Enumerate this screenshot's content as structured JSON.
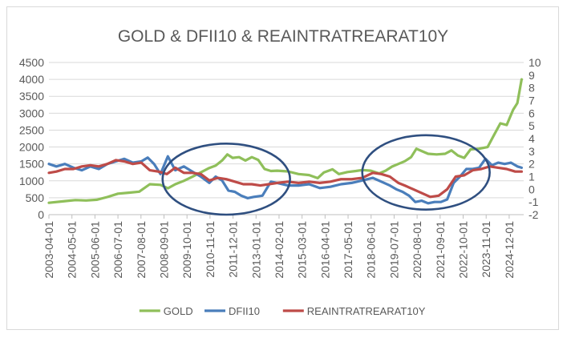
{
  "chart_data": {
    "type": "line",
    "title": "GOLD & DFII10 & REAINTRATREARAT10Y",
    "xlabel": "",
    "ylabel_left": "",
    "ylabel_right": "",
    "ylim_left": [
      0,
      4500
    ],
    "ylim_right": [
      -2,
      10
    ],
    "yticks_left": [
      "0",
      "500",
      "1000",
      "1500",
      "2000",
      "2500",
      "3000",
      "3500",
      "4000",
      "4500"
    ],
    "yticks_right": [
      "-2",
      "-1",
      "0",
      "1",
      "2",
      "3",
      "4",
      "5",
      "6",
      "7",
      "8",
      "9",
      "10"
    ],
    "x_categories": [
      "2003-04-01",
      "2004-05-01",
      "2005-06-01",
      "2006-07-01",
      "2007-08-01",
      "2008-09-01",
      "2009-10-01",
      "2010-11-01",
      "2011-12-01",
      "2013-01-01",
      "2014-02-01",
      "2015-03-01",
      "2016-04-01",
      "2017-05-01",
      "2018-06-01",
      "2019-07-01",
      "2020-08-01",
      "2021-09-01",
      "2022-10-01",
      "2023-11-01",
      "2024-12-01"
    ],
    "legend_position": "bottom",
    "series": [
      {
        "name": "GOLD",
        "axis": "left",
        "color": "#8fbf5a",
        "x": [
          2003.25,
          2004.0,
          2004.5,
          2005.0,
          2005.5,
          2006.0,
          2006.5,
          2007.0,
          2007.5,
          2008.0,
          2008.5,
          2008.85,
          2009.2,
          2009.6,
          2010.0,
          2010.4,
          2010.8,
          2011.1,
          2011.4,
          2011.65,
          2011.9,
          2012.2,
          2012.5,
          2012.8,
          2013.1,
          2013.4,
          2013.7,
          2014.0,
          2014.5,
          2015.0,
          2015.5,
          2015.9,
          2016.2,
          2016.6,
          2016.9,
          2017.3,
          2017.7,
          2018.0,
          2018.4,
          2018.8,
          2019.1,
          2019.4,
          2019.7,
          2020.0,
          2020.3,
          2020.55,
          2020.8,
          2021.1,
          2021.5,
          2021.9,
          2022.2,
          2022.5,
          2022.8,
          2023.1,
          2023.5,
          2023.9,
          2024.2,
          2024.5,
          2024.8,
          2025.1,
          2025.3,
          2025.5
        ],
        "values": [
          350,
          400,
          430,
          420,
          440,
          520,
          620,
          650,
          680,
          900,
          880,
          780,
          900,
          1000,
          1120,
          1250,
          1380,
          1450,
          1600,
          1780,
          1680,
          1700,
          1600,
          1700,
          1620,
          1350,
          1290,
          1300,
          1280,
          1200,
          1170,
          1080,
          1250,
          1340,
          1200,
          1260,
          1290,
          1320,
          1300,
          1220,
          1300,
          1420,
          1500,
          1580,
          1700,
          1950,
          1880,
          1800,
          1780,
          1800,
          1900,
          1750,
          1680,
          1930,
          1950,
          2000,
          2350,
          2700,
          2650,
          3100,
          3300,
          4000
        ]
      },
      {
        "name": "DFII10",
        "axis": "right",
        "color": "#4a7ebb",
        "x": [
          2003.25,
          2003.6,
          2004.0,
          2004.4,
          2004.8,
          2005.2,
          2005.6,
          2006.0,
          2006.4,
          2006.8,
          2007.2,
          2007.6,
          2007.9,
          2008.2,
          2008.5,
          2008.85,
          2009.2,
          2009.6,
          2010.0,
          2010.4,
          2010.8,
          2011.1,
          2011.4,
          2011.7,
          2012.0,
          2012.3,
          2012.6,
          2012.9,
          2013.3,
          2013.7,
          2014.0,
          2014.5,
          2015.0,
          2015.5,
          2016.0,
          2016.5,
          2017.0,
          2017.5,
          2018.0,
          2018.5,
          2018.9,
          2019.3,
          2019.6,
          2019.9,
          2020.2,
          2020.5,
          2020.8,
          2021.1,
          2021.4,
          2021.7,
          2022.0,
          2022.3,
          2022.6,
          2022.9,
          2023.2,
          2023.5,
          2023.8,
          2024.1,
          2024.4,
          2024.7,
          2025.0,
          2025.3,
          2025.5
        ],
        "values": [
          2.0,
          1.8,
          2.0,
          1.7,
          1.5,
          1.8,
          1.6,
          2.0,
          2.2,
          2.4,
          2.1,
          2.2,
          2.5,
          2.0,
          1.2,
          2.6,
          1.5,
          1.8,
          1.4,
          1.0,
          0.5,
          1.0,
          0.7,
          -0.1,
          -0.2,
          -0.5,
          -0.7,
          -0.6,
          -0.5,
          0.6,
          0.5,
          0.3,
          0.3,
          0.4,
          0.1,
          0.2,
          0.4,
          0.5,
          0.7,
          0.9,
          0.6,
          0.3,
          0.0,
          -0.2,
          -0.5,
          -1.0,
          -0.9,
          -1.1,
          -1.0,
          -1.0,
          -0.8,
          0.5,
          1.0,
          1.6,
          1.6,
          1.7,
          2.4,
          1.9,
          2.1,
          2.0,
          2.1,
          1.8,
          1.7
        ]
      },
      {
        "name": "REAINTRATREARAT10Y",
        "axis": "right",
        "color": "#be4b48",
        "x": [
          2003.25,
          2003.6,
          2004.0,
          2004.4,
          2004.8,
          2005.2,
          2005.6,
          2006.0,
          2006.4,
          2006.8,
          2007.2,
          2007.6,
          2008.0,
          2008.4,
          2008.8,
          2009.2,
          2009.6,
          2010.0,
          2010.4,
          2010.8,
          2011.2,
          2011.6,
          2012.0,
          2012.4,
          2012.8,
          2013.2,
          2013.6,
          2014.0,
          2014.5,
          2015.0,
          2015.5,
          2016.0,
          2016.5,
          2017.0,
          2017.5,
          2018.0,
          2018.5,
          2018.9,
          2019.3,
          2019.7,
          2020.0,
          2020.4,
          2020.8,
          2021.2,
          2021.6,
          2022.0,
          2022.4,
          2022.8,
          2023.2,
          2023.6,
          2024.0,
          2024.4,
          2024.8,
          2025.2,
          2025.5
        ],
        "values": [
          1.3,
          1.4,
          1.6,
          1.6,
          1.8,
          1.9,
          1.8,
          2.0,
          2.3,
          2.2,
          2.0,
          2.1,
          1.5,
          1.4,
          1.2,
          1.7,
          1.3,
          1.3,
          1.2,
          0.7,
          0.9,
          0.8,
          0.6,
          0.4,
          0.4,
          0.3,
          0.4,
          0.5,
          0.6,
          0.5,
          0.6,
          0.5,
          0.6,
          0.8,
          0.8,
          0.9,
          1.3,
          1.2,
          1.0,
          0.5,
          0.3,
          0.0,
          -0.3,
          -0.6,
          -0.5,
          0.0,
          1.0,
          1.1,
          1.5,
          1.6,
          1.8,
          1.7,
          1.6,
          1.4,
          1.4
        ]
      }
    ],
    "annotations": [
      {
        "type": "ellipse",
        "cx_year": 2011.6,
        "cy_left": 1050,
        "rx_years": 3.0,
        "ry_left": 1050,
        "color": "#2f4f80"
      },
      {
        "type": "ellipse",
        "cx_year": 2021.0,
        "cy_left": 1250,
        "rx_years": 3.0,
        "ry_left": 1100,
        "color": "#2f4f80"
      }
    ]
  }
}
